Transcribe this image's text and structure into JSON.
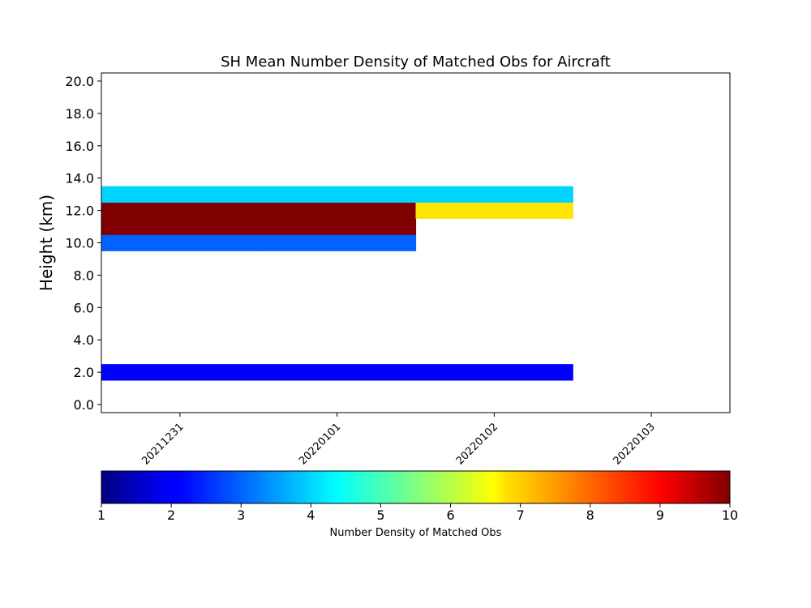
{
  "chart_data": {
    "type": "heatmap",
    "title": "SH Mean Number Density of Matched Obs for Aircraft",
    "xlabel": "",
    "ylabel": "Height (km)",
    "x_categories": [
      "20211231",
      "20220101",
      "20220102",
      "20220103"
    ],
    "xlim": [
      -0.5,
      3.5
    ],
    "y_ticks": [
      "0.0",
      "2.0",
      "4.0",
      "6.0",
      "8.0",
      "10.0",
      "12.0",
      "14.0",
      "16.0",
      "18.0",
      "20.0"
    ],
    "ylim": [
      -0.5,
      20.5
    ],
    "y_bin_width": 1,
    "cells": [
      {
        "x": "20211231",
        "y": 2,
        "value": 2.0
      },
      {
        "x": "20220101",
        "y": 2,
        "value": 2.0
      },
      {
        "x": "20220102",
        "y": 2,
        "value": 2.0
      },
      {
        "x": "20211231",
        "y": 10,
        "value": 3.0
      },
      {
        "x": "20220101",
        "y": 10,
        "value": 3.0
      },
      {
        "x": "20211231",
        "y": 11,
        "value": 10.0
      },
      {
        "x": "20220101",
        "y": 11,
        "value": 10.0
      },
      {
        "x": "20211231",
        "y": 12,
        "value": 10.0
      },
      {
        "x": "20220101",
        "y": 12,
        "value": 10.0
      },
      {
        "x": "20220102",
        "y": 12,
        "value": 7.0
      },
      {
        "x": "20211231",
        "y": 13,
        "value": 4.0
      },
      {
        "x": "20220101",
        "y": 13,
        "value": 4.0
      },
      {
        "x": "20220102",
        "y": 13,
        "value": 4.0
      }
    ],
    "colorbar": {
      "label": "Number Density of Matched Obs",
      "vmin": 1,
      "vmax": 10,
      "ticks": [
        "1",
        "2",
        "3",
        "4",
        "5",
        "6",
        "7",
        "8",
        "9",
        "10"
      ],
      "colormap": "jet",
      "orientation": "horizontal"
    },
    "grid": false
  }
}
